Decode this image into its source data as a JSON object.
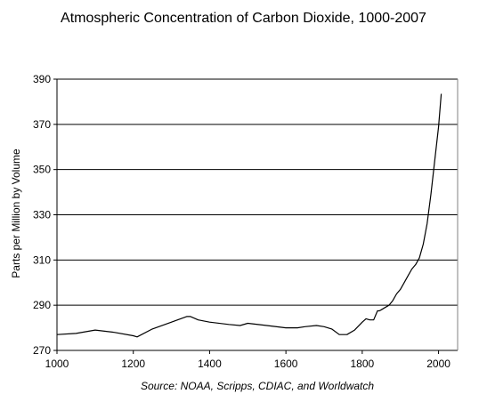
{
  "chart_data": {
    "type": "line",
    "title": "Atmospheric Concentration of Carbon Dioxide, 1000-2007",
    "xlabel": "",
    "ylabel": "Parts per Million by Volume",
    "caption": "Source: NOAA, Scripps, CDIAC, and Worldwatch",
    "xlim": [
      1000,
      2050
    ],
    "ylim": [
      270,
      390
    ],
    "x_ticks": [
      1000,
      1200,
      1400,
      1600,
      1800,
      2000
    ],
    "y_ticks": [
      270,
      290,
      310,
      330,
      350,
      370,
      390
    ],
    "grid": "horizontal",
    "series": [
      {
        "x": [
          1000,
          1050,
          1100,
          1150,
          1200,
          1210,
          1250,
          1300,
          1340,
          1350,
          1370,
          1400,
          1450,
          1480,
          1500,
          1550,
          1600,
          1630,
          1650,
          1680,
          1700,
          1720,
          1740,
          1760,
          1780,
          1800,
          1810,
          1820,
          1830,
          1840,
          1845,
          1850,
          1860,
          1870,
          1880,
          1890,
          1900,
          1910,
          1920,
          1930,
          1940,
          1950,
          1960,
          1970,
          1980,
          1990,
          2000,
          2007
        ],
        "y": [
          277,
          277.5,
          279,
          278,
          276.5,
          276,
          279.5,
          282.5,
          285,
          285,
          283.5,
          282.5,
          281.5,
          281,
          282,
          281,
          280,
          280,
          280.5,
          281,
          280.5,
          279.5,
          277,
          277,
          279,
          282.5,
          284,
          283.5,
          283.5,
          287.5,
          287.5,
          288,
          289,
          290,
          292,
          295,
          297,
          300,
          303,
          306,
          308,
          311,
          317,
          326,
          339,
          354,
          369,
          383.5
        ]
      }
    ]
  }
}
